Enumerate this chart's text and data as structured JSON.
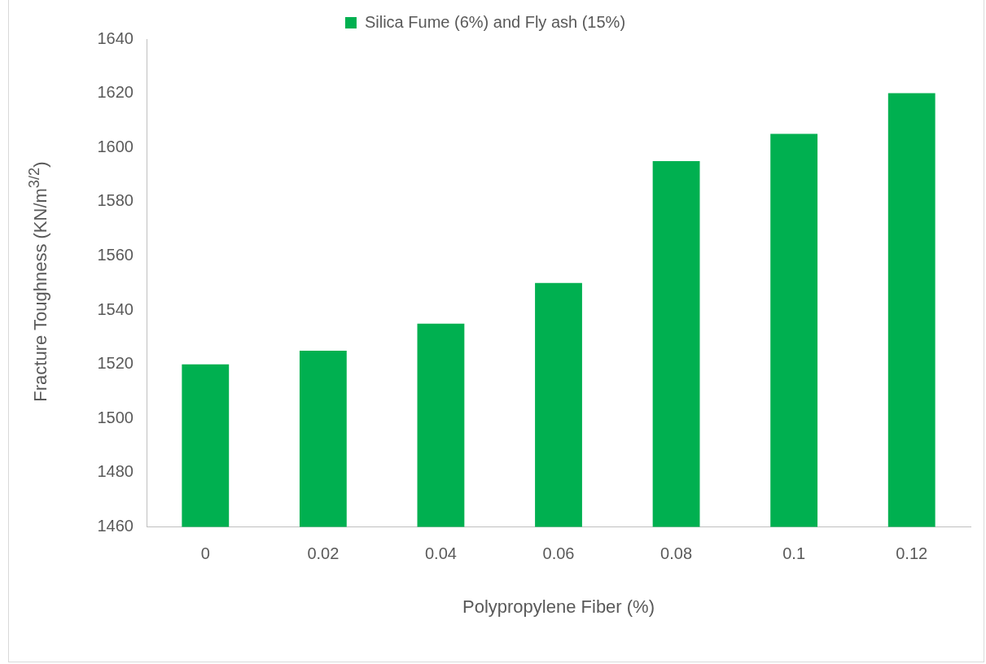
{
  "chart_data": {
    "type": "bar",
    "xlabel": "Polypropylene Fiber (%)",
    "ylabel": "Fracture Toughness (KN/m$^{3/2}$)",
    "categories": [
      "0",
      "0.02",
      "0.04",
      "0.06",
      "0.08",
      "0.1",
      "0.12"
    ],
    "series": [
      {
        "name": "Silica Fume (6%) and Fly ash (15%)",
        "color": "#00b050",
        "values": [
          1520,
          1525,
          1535,
          1550,
          1595,
          1605,
          1620
        ]
      }
    ],
    "ylim": [
      1460,
      1640
    ],
    "yticks": [
      1460,
      1480,
      1500,
      1520,
      1540,
      1560,
      1580,
      1600,
      1620,
      1640
    ],
    "grid": false,
    "legend": "top"
  }
}
